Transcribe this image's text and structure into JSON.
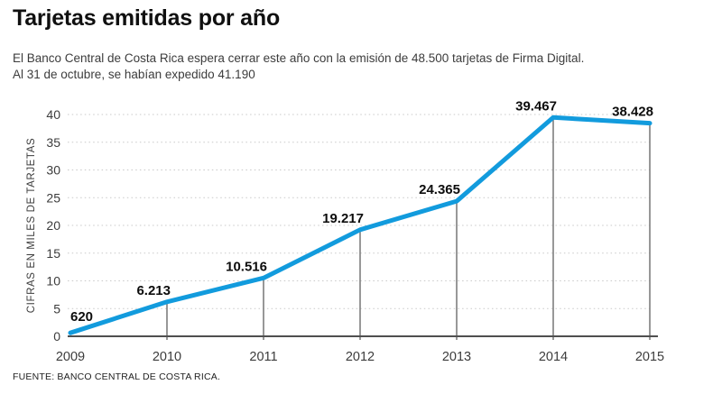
{
  "header": {
    "title": "Tarjetas emitidas por año",
    "subtitle_line1": "El Banco Central de Costa Rica espera cerrar este año con la emisión de 48.500 tarjetas de Firma Digital.",
    "subtitle_line2": "Al 31 de octubre, se habían expedido 41.190"
  },
  "chart_data": {
    "type": "line",
    "title": "Tarjetas emitidas por año",
    "categories": [
      "2009",
      "2010",
      "2011",
      "2012",
      "2013",
      "2014",
      "2015"
    ],
    "values": [
      0.62,
      6.213,
      10.516,
      19.217,
      24.365,
      39.467,
      38.428
    ],
    "point_labels": [
      "620",
      "6.213",
      "10.516",
      "19.217",
      "24.365",
      "39.467",
      "38.428"
    ],
    "values_unit": "thousands of cards",
    "xlabel": "",
    "ylabel": "CIFRAS EN MILES DE TARJETAS",
    "ylim": [
      0,
      40
    ],
    "yticks": [
      0,
      5,
      10,
      15,
      20,
      25,
      30,
      35,
      40
    ],
    "grid": "dotted-horizontal",
    "legend": "none",
    "line_color": "#129BDD",
    "marker_line_color": "#7f7f7f",
    "axis_color": "#4f4f4f",
    "gridline_color": "#c9c9c9"
  },
  "footer": {
    "source": "FUENTE: BANCO CENTRAL DE COSTA RICA."
  }
}
